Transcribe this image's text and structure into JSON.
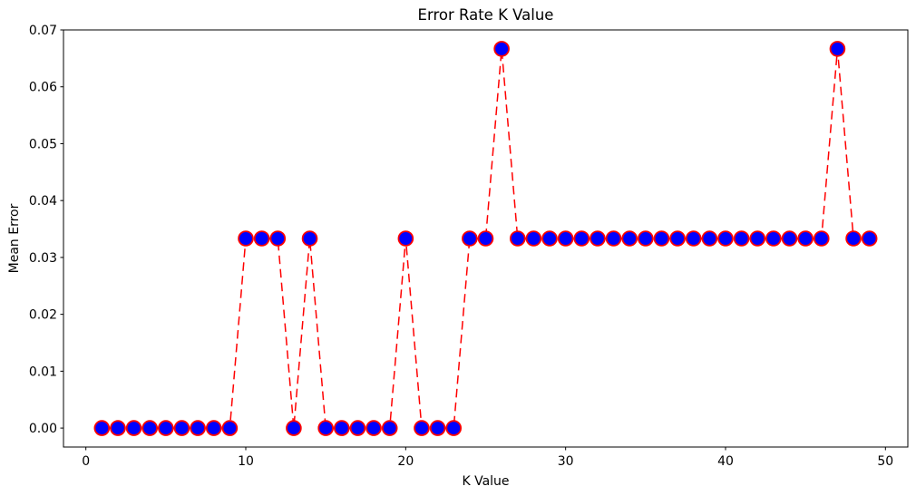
{
  "figure": {
    "background": "#ffffff",
    "title": "Error Rate K Value"
  },
  "chart_data": {
    "type": "line",
    "title": "Error Rate K Value",
    "xlabel": "K Value",
    "ylabel": "Mean Error",
    "x": [
      1,
      2,
      3,
      4,
      5,
      6,
      7,
      8,
      9,
      10,
      11,
      12,
      13,
      14,
      15,
      16,
      17,
      18,
      19,
      20,
      21,
      22,
      23,
      24,
      25,
      26,
      27,
      28,
      29,
      30,
      31,
      32,
      33,
      34,
      35,
      36,
      37,
      38,
      39,
      40,
      41,
      42,
      43,
      44,
      45,
      46,
      47,
      48,
      49
    ],
    "y": [
      0.0,
      0.0,
      0.0,
      0.0,
      0.0,
      0.0,
      0.0,
      0.0,
      0.0,
      0.033333,
      0.033333,
      0.033333,
      0.0,
      0.033333,
      0.0,
      0.0,
      0.0,
      0.0,
      0.0,
      0.033333,
      0.0,
      0.0,
      0.0,
      0.033333,
      0.033333,
      0.066667,
      0.033333,
      0.033333,
      0.033333,
      0.033333,
      0.033333,
      0.033333,
      0.033333,
      0.033333,
      0.033333,
      0.033333,
      0.033333,
      0.033333,
      0.033333,
      0.033333,
      0.033333,
      0.033333,
      0.033333,
      0.033333,
      0.033333,
      0.033333,
      0.066667,
      0.033333,
      0.033333
    ],
    "xlim": [
      -1.4,
      51.4
    ],
    "ylim": [
      -0.0033333,
      0.07
    ],
    "xticks": [
      0,
      10,
      20,
      30,
      40,
      50
    ],
    "xtick_labels": [
      "0",
      "10",
      "20",
      "30",
      "40",
      "50"
    ],
    "yticks": [
      0.0,
      0.01,
      0.02,
      0.03,
      0.04,
      0.05,
      0.06,
      0.07
    ],
    "ytick_labels": [
      "0.00",
      "0.01",
      "0.02",
      "0.03",
      "0.04",
      "0.05",
      "0.06",
      "0.07"
    ],
    "grid": false,
    "legend": null,
    "line_color": "#ff0000",
    "line_style": "dashed",
    "line_width": 1.5,
    "dash_pattern": "9.5 5.5",
    "marker": "circle",
    "marker_face_color": "#0000ff",
    "marker_edge_color": "#ff0000",
    "marker_radius": 7.9,
    "marker_edge_width": 1.8,
    "spine_color": "#000000",
    "tick_length": 3.5
  }
}
